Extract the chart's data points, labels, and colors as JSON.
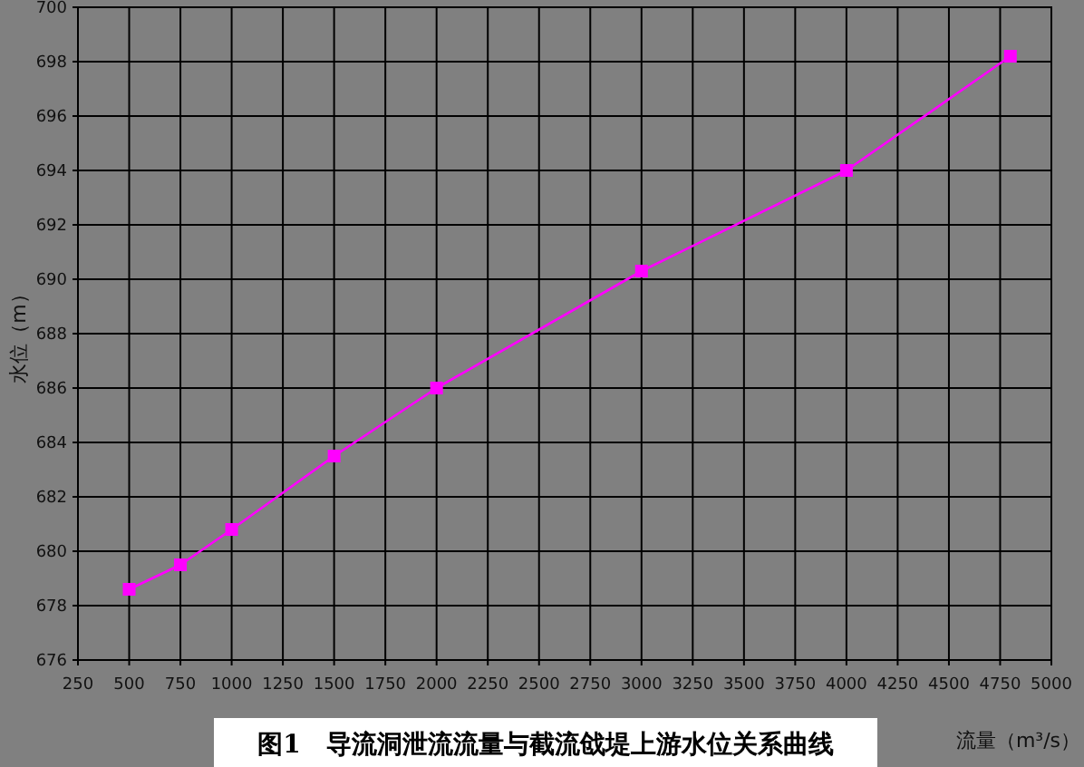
{
  "chart_data": {
    "type": "line",
    "title": "图1　导流洞泄流流量与截流戗堤上游水位关系曲线",
    "xlabel": "流量（m³/s）",
    "ylabel": "水位（m）",
    "x": [
      500,
      750,
      1000,
      1500,
      2000,
      3000,
      4000,
      4800
    ],
    "series": [
      {
        "color": "#ff00ff",
        "values": [
          678.6,
          679.5,
          680.8,
          683.5,
          686.0,
          690.3,
          694.0,
          698.2
        ]
      }
    ],
    "xlim": [
      250,
      5000
    ],
    "ylim": [
      676,
      700
    ],
    "xticks": [
      250,
      500,
      750,
      1000,
      1250,
      1500,
      1750,
      2000,
      2250,
      2500,
      2750,
      3000,
      3250,
      3500,
      3750,
      4000,
      4250,
      4500,
      4750,
      5000
    ],
    "yticks": [
      676,
      678,
      680,
      682,
      684,
      686,
      688,
      690,
      692,
      694,
      696,
      698,
      700
    ],
    "grid": true,
    "marker": "square",
    "line_style": "solid"
  }
}
